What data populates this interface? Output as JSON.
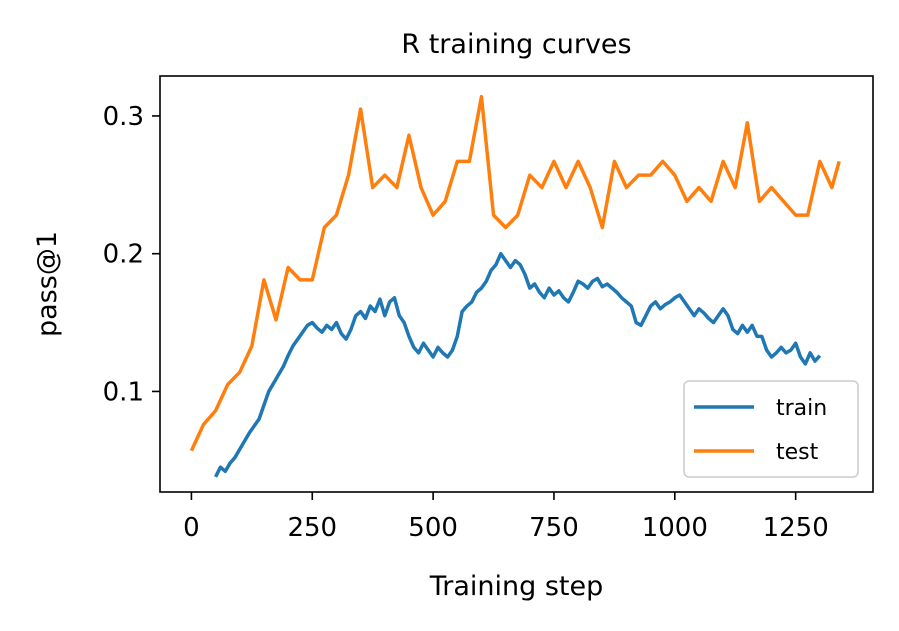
{
  "chart_data": {
    "type": "line",
    "title": "R training curves",
    "xlabel": "Training step",
    "ylabel": "pass@1",
    "xlim": [
      -65,
      1410
    ],
    "ylim": [
      0.027,
      0.329
    ],
    "xticks": [
      0,
      250,
      500,
      750,
      1000,
      1250
    ],
    "yticks": [
      0.1,
      0.2,
      0.3
    ],
    "ytick_labels": [
      "0.1",
      "0.2",
      "0.3"
    ],
    "legend_position": "lower-right",
    "series": [
      {
        "name": "train",
        "color": "#1f77b4",
        "x": [
          50,
          60,
          70,
          80,
          90,
          100,
          110,
          120,
          130,
          140,
          150,
          160,
          170,
          180,
          190,
          200,
          210,
          220,
          230,
          240,
          250,
          260,
          270,
          280,
          290,
          300,
          310,
          320,
          330,
          340,
          350,
          360,
          370,
          380,
          390,
          400,
          410,
          420,
          430,
          440,
          450,
          460,
          470,
          480,
          490,
          500,
          510,
          520,
          530,
          540,
          550,
          560,
          570,
          580,
          590,
          600,
          610,
          620,
          630,
          640,
          650,
          660,
          670,
          680,
          690,
          700,
          710,
          720,
          730,
          740,
          750,
          760,
          770,
          780,
          790,
          800,
          810,
          820,
          830,
          840,
          850,
          860,
          870,
          880,
          890,
          900,
          910,
          920,
          930,
          940,
          950,
          960,
          970,
          980,
          990,
          1000,
          1010,
          1020,
          1030,
          1040,
          1050,
          1060,
          1070,
          1080,
          1090,
          1100,
          1110,
          1120,
          1130,
          1140,
          1150,
          1160,
          1170,
          1180,
          1190,
          1200,
          1210,
          1220,
          1230,
          1240,
          1250,
          1260,
          1270,
          1280,
          1290,
          1300
        ],
        "y": [
          0.038,
          0.045,
          0.042,
          0.048,
          0.052,
          0.058,
          0.064,
          0.07,
          0.075,
          0.08,
          0.09,
          0.1,
          0.106,
          0.112,
          0.118,
          0.126,
          0.133,
          0.138,
          0.143,
          0.148,
          0.15,
          0.146,
          0.143,
          0.148,
          0.145,
          0.15,
          0.142,
          0.138,
          0.145,
          0.155,
          0.158,
          0.153,
          0.162,
          0.158,
          0.167,
          0.155,
          0.165,
          0.168,
          0.155,
          0.15,
          0.14,
          0.132,
          0.128,
          0.135,
          0.13,
          0.125,
          0.132,
          0.128,
          0.125,
          0.13,
          0.14,
          0.158,
          0.162,
          0.165,
          0.172,
          0.175,
          0.18,
          0.188,
          0.192,
          0.2,
          0.195,
          0.19,
          0.195,
          0.192,
          0.185,
          0.175,
          0.178,
          0.172,
          0.168,
          0.175,
          0.17,
          0.173,
          0.168,
          0.165,
          0.172,
          0.18,
          0.178,
          0.175,
          0.18,
          0.182,
          0.176,
          0.178,
          0.175,
          0.172,
          0.168,
          0.165,
          0.162,
          0.15,
          0.148,
          0.155,
          0.162,
          0.165,
          0.16,
          0.163,
          0.165,
          0.168,
          0.17,
          0.165,
          0.16,
          0.155,
          0.16,
          0.157,
          0.153,
          0.15,
          0.155,
          0.16,
          0.155,
          0.145,
          0.142,
          0.148,
          0.143,
          0.148,
          0.14,
          0.14,
          0.13,
          0.125,
          0.128,
          0.132,
          0.128,
          0.13,
          0.135,
          0.125,
          0.12,
          0.128,
          0.122,
          0.126
        ]
      },
      {
        "name": "test",
        "color": "#ff7f0e",
        "x": [
          0,
          25,
          50,
          75,
          100,
          125,
          150,
          175,
          200,
          225,
          250,
          275,
          300,
          325,
          350,
          375,
          400,
          425,
          450,
          475,
          500,
          525,
          550,
          575,
          600,
          625,
          650,
          675,
          700,
          725,
          750,
          775,
          800,
          825,
          850,
          875,
          900,
          925,
          950,
          975,
          1000,
          1025,
          1050,
          1075,
          1100,
          1125,
          1150,
          1175,
          1200,
          1225,
          1250,
          1275,
          1300,
          1325,
          1340
        ],
        "y": [
          0.057,
          0.076,
          0.086,
          0.105,
          0.114,
          0.133,
          0.181,
          0.152,
          0.19,
          0.181,
          0.181,
          0.219,
          0.228,
          0.257,
          0.305,
          0.248,
          0.257,
          0.248,
          0.286,
          0.248,
          0.228,
          0.238,
          0.267,
          0.267,
          0.314,
          0.228,
          0.219,
          0.228,
          0.257,
          0.248,
          0.267,
          0.248,
          0.267,
          0.248,
          0.219,
          0.267,
          0.248,
          0.257,
          0.257,
          0.267,
          0.257,
          0.238,
          0.248,
          0.238,
          0.267,
          0.248,
          0.295,
          0.238,
          0.248,
          0.238,
          0.228,
          0.228,
          0.267,
          0.248,
          0.267
        ]
      }
    ]
  }
}
